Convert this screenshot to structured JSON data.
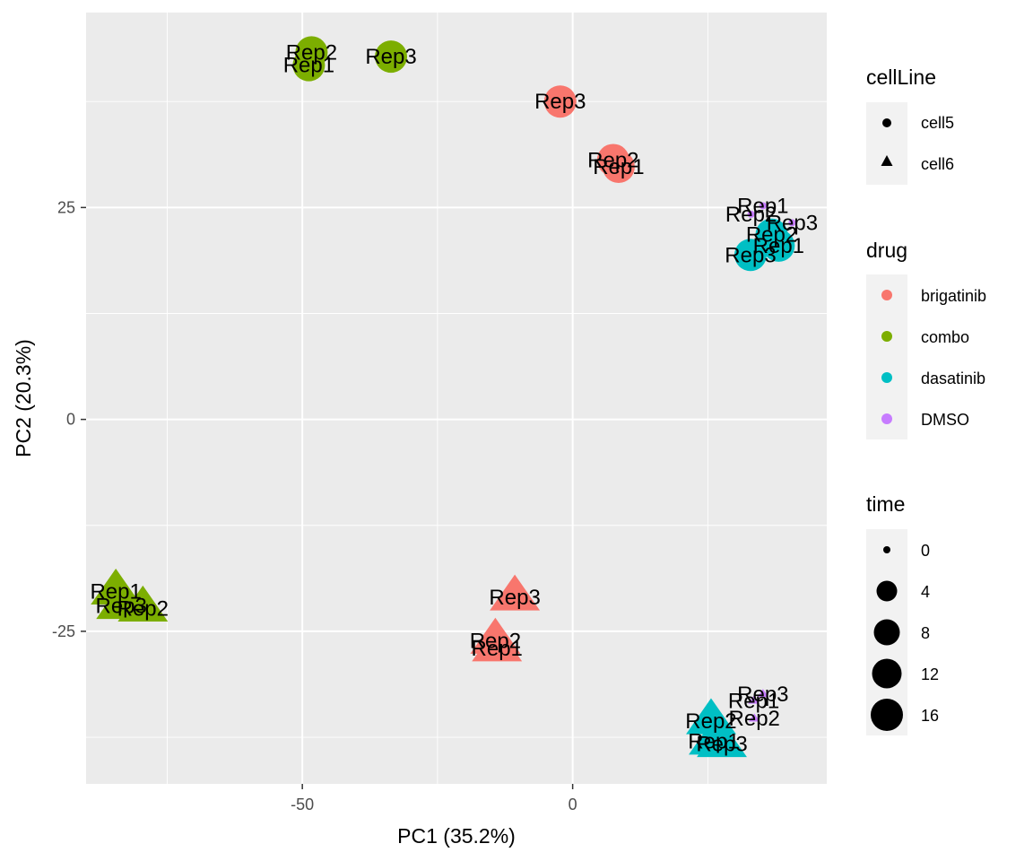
{
  "chart_data": {
    "type": "scatter",
    "xlabel": "PC1 (35.2%)",
    "ylabel": "PC2 (20.3%)",
    "xlim": [
      -90,
      47
    ],
    "ylim": [
      -43,
      48
    ],
    "x_ticks": [
      -50,
      0
    ],
    "x_tick_labels": [
      "-50",
      "0"
    ],
    "y_ticks": [
      -25,
      0,
      25
    ],
    "y_tick_labels": [
      "-25",
      "0",
      "25"
    ],
    "grid": true,
    "colors": {
      "brigatinib": "#F8766D",
      "combo": "#7CAE00",
      "dasatinib": "#00BFC4",
      "DMSO": "#C77CFF"
    },
    "legend": {
      "position": "right",
      "cellLine": {
        "title": "cellLine",
        "items": [
          {
            "label": "cell5",
            "shape": "circle"
          },
          {
            "label": "cell6",
            "shape": "triangle"
          }
        ]
      },
      "drug": {
        "title": "drug",
        "items": [
          "brigatinib",
          "combo",
          "dasatinib",
          "DMSO"
        ]
      },
      "time": {
        "title": "time",
        "items": [
          {
            "label": "0",
            "value": 0
          },
          {
            "label": "4",
            "value": 4
          },
          {
            "label": "8",
            "value": 8
          },
          {
            "label": "12",
            "value": 12
          },
          {
            "label": "16",
            "value": 16
          }
        ]
      }
    },
    "points": [
      {
        "x": -48.3,
        "y": 43.3,
        "drug": "combo",
        "cellLine": "cell5",
        "time": 16,
        "label": "Rep2"
      },
      {
        "x": -48.8,
        "y": 41.8,
        "drug": "combo",
        "cellLine": "cell5",
        "time": 16,
        "label": "Rep1"
      },
      {
        "x": -33.6,
        "y": 42.8,
        "drug": "combo",
        "cellLine": "cell5",
        "time": 16,
        "label": "Rep3"
      },
      {
        "x": -2.3,
        "y": 37.5,
        "drug": "brigatinib",
        "cellLine": "cell5",
        "time": 16,
        "label": "Rep3"
      },
      {
        "x": 7.5,
        "y": 30.6,
        "drug": "brigatinib",
        "cellLine": "cell5",
        "time": 16,
        "label": "Rep2"
      },
      {
        "x": 8.5,
        "y": 29.8,
        "drug": "brigatinib",
        "cellLine": "cell5",
        "time": 16,
        "label": "Rep1"
      },
      {
        "x": 35.2,
        "y": 25.2,
        "drug": "DMSO",
        "cellLine": "cell5",
        "time": 0,
        "label": "Rep1"
      },
      {
        "x": 33.0,
        "y": 24.2,
        "drug": "DMSO",
        "cellLine": "cell5",
        "time": 0,
        "label": "Rep2"
      },
      {
        "x": 40.6,
        "y": 23.2,
        "drug": "DMSO",
        "cellLine": "cell5",
        "time": 0,
        "label": "Rep3"
      },
      {
        "x": 36.8,
        "y": 21.8,
        "drug": "dasatinib",
        "cellLine": "cell5",
        "time": 16,
        "label": "Rep2"
      },
      {
        "x": 38.1,
        "y": 20.5,
        "drug": "dasatinib",
        "cellLine": "cell5",
        "time": 16,
        "label": "Rep1"
      },
      {
        "x": 32.9,
        "y": 19.4,
        "drug": "dasatinib",
        "cellLine": "cell5",
        "time": 16,
        "label": "Rep3"
      },
      {
        "x": -84.5,
        "y": -20.3,
        "drug": "combo",
        "cellLine": "cell6",
        "time": 16,
        "label": "Rep1"
      },
      {
        "x": -83.5,
        "y": -22.0,
        "drug": "combo",
        "cellLine": "cell6",
        "time": 16,
        "label": "Rep3"
      },
      {
        "x": -79.5,
        "y": -22.3,
        "drug": "combo",
        "cellLine": "cell6",
        "time": 16,
        "label": "Rep2"
      },
      {
        "x": -10.7,
        "y": -21.0,
        "drug": "brigatinib",
        "cellLine": "cell6",
        "time": 16,
        "label": "Rep3"
      },
      {
        "x": -14.3,
        "y": -26.1,
        "drug": "brigatinib",
        "cellLine": "cell6",
        "time": 16,
        "label": "Rep2"
      },
      {
        "x": -14.0,
        "y": -27.0,
        "drug": "brigatinib",
        "cellLine": "cell6",
        "time": 16,
        "label": "Rep1"
      },
      {
        "x": 35.2,
        "y": -32.4,
        "drug": "DMSO",
        "cellLine": "cell6",
        "time": 0,
        "label": "Rep3"
      },
      {
        "x": 33.5,
        "y": -33.2,
        "drug": "DMSO",
        "cellLine": "cell6",
        "time": 0,
        "label": "Rep1"
      },
      {
        "x": 33.6,
        "y": -35.3,
        "drug": "DMSO",
        "cellLine": "cell6",
        "time": 0,
        "label": "Rep2"
      },
      {
        "x": 25.6,
        "y": -35.6,
        "drug": "dasatinib",
        "cellLine": "cell6",
        "time": 16,
        "label": "Rep2"
      },
      {
        "x": 26.1,
        "y": -38.0,
        "drug": "dasatinib",
        "cellLine": "cell6",
        "time": 16,
        "label": "Rep1"
      },
      {
        "x": 27.6,
        "y": -38.3,
        "drug": "dasatinib",
        "cellLine": "cell6",
        "time": 16,
        "label": "Rep3"
      }
    ]
  }
}
